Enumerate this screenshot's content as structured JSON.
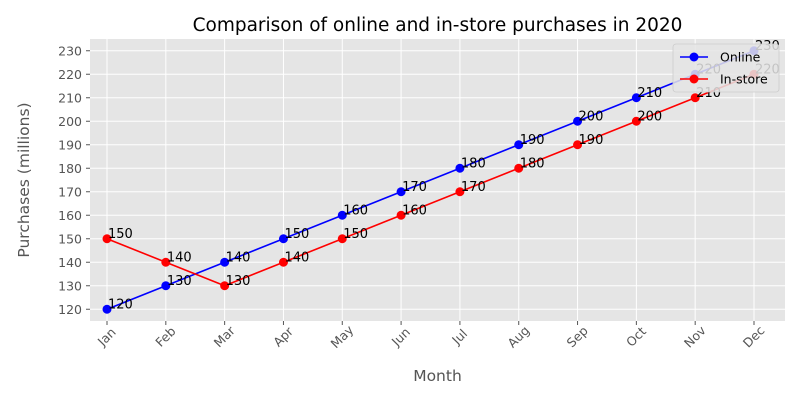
{
  "chart_data": {
    "type": "line",
    "title": "Comparison of online and in-store purchases in 2020",
    "xlabel": "Month",
    "ylabel": "Purchases (millions)",
    "categories": [
      "Jan",
      "Feb",
      "Mar",
      "Apr",
      "May",
      "Jun",
      "Jul",
      "Aug",
      "Sep",
      "Oct",
      "Nov",
      "Dec"
    ],
    "ylim": [
      115,
      235
    ],
    "yticks": [
      120,
      130,
      140,
      150,
      160,
      170,
      180,
      190,
      200,
      210,
      220,
      230
    ],
    "grid": true,
    "legend_position": "top-right",
    "series": [
      {
        "name": "Online",
        "color": "#0000ff",
        "values": [
          120,
          130,
          140,
          150,
          160,
          170,
          180,
          190,
          200,
          210,
          220,
          230
        ]
      },
      {
        "name": "In-store",
        "color": "#ff0000",
        "values": [
          150,
          140,
          130,
          140,
          150,
          160,
          170,
          180,
          190,
          200,
          210,
          220
        ]
      }
    ],
    "background_color": "#e5e5e5",
    "grid_color": "#ffffff"
  }
}
